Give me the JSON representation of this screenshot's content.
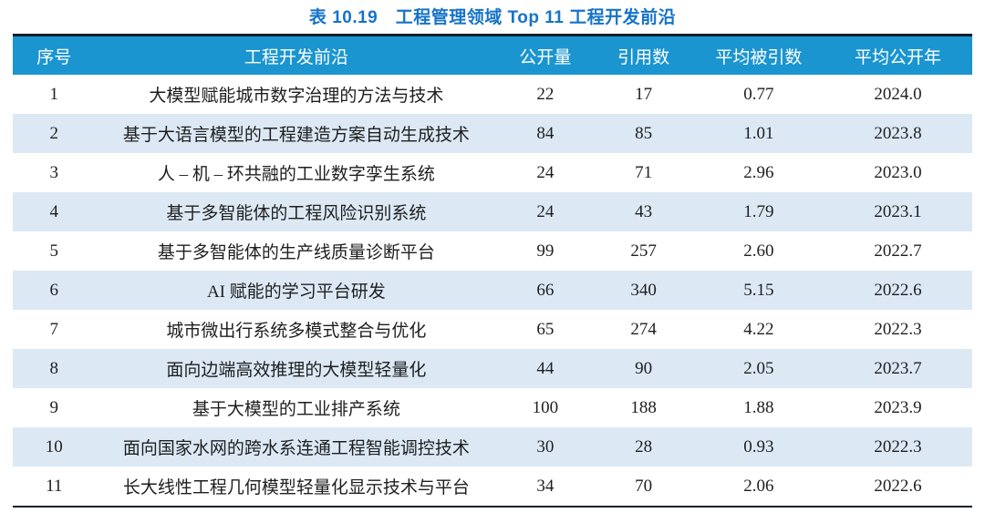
{
  "title": "表 10.19　工程管理领域 Top 11 工程开发前沿",
  "table": {
    "columns": [
      "序号",
      "工程开发前沿",
      "公开量",
      "引用数",
      "平均被引数",
      "平均公开年"
    ],
    "rows": [
      [
        "1",
        "大模型赋能城市数字治理的方法与技术",
        "22",
        "17",
        "0.77",
        "2024.0"
      ],
      [
        "2",
        "基于大语言模型的工程建造方案自动生成技术",
        "84",
        "85",
        "1.01",
        "2023.8"
      ],
      [
        "3",
        "人 – 机 – 环共融的工业数字孪生系统",
        "24",
        "71",
        "2.96",
        "2023.0"
      ],
      [
        "4",
        "基于多智能体的工程风险识别系统",
        "24",
        "43",
        "1.79",
        "2023.1"
      ],
      [
        "5",
        "基于多智能体的生产线质量诊断平台",
        "99",
        "257",
        "2.60",
        "2022.7"
      ],
      [
        "6",
        "AI 赋能的学习平台研发",
        "66",
        "340",
        "5.15",
        "2022.6"
      ],
      [
        "7",
        "城市微出行系统多模式整合与优化",
        "65",
        "274",
        "4.22",
        "2022.3"
      ],
      [
        "8",
        "面向边端高效推理的大模型轻量化",
        "44",
        "90",
        "2.05",
        "2023.7"
      ],
      [
        "9",
        "基于大模型的工业排产系统",
        "100",
        "188",
        "1.88",
        "2023.9"
      ],
      [
        "10",
        "面向国家水网的跨水系连通工程智能调控技术",
        "30",
        "28",
        "0.93",
        "2022.3"
      ],
      [
        "11",
        "长大线性工程几何模型轻量化显示技术与平台",
        "34",
        "70",
        "2.06",
        "2022.6"
      ]
    ]
  },
  "colors": {
    "title_text": "#1673c8",
    "header_background": "#1b95d0",
    "header_text": "#ffffff",
    "shaded_row_background": "#dce9f5",
    "table_border": "#111e2a",
    "body_text": "#1e1e1e"
  }
}
